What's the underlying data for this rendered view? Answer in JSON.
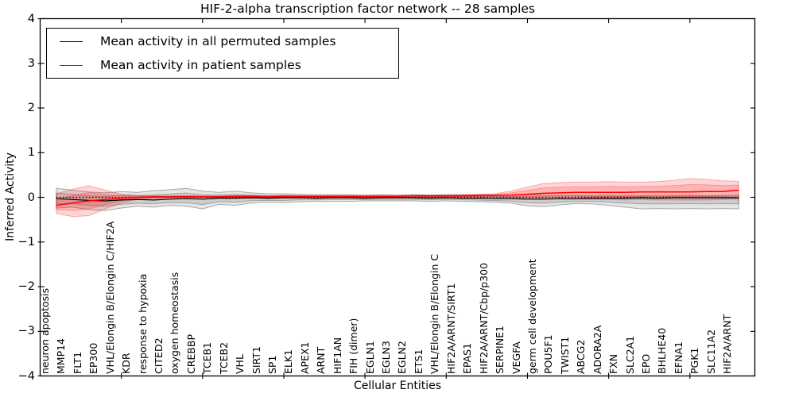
{
  "title": "HIF-2-alpha transcription factor network -- 28 samples",
  "legend": {
    "items": [
      {
        "label": "Mean activity in all permuted samples",
        "color": "#000000"
      },
      {
        "label": "Mean activity in patient samples",
        "color": "#ff0000"
      }
    ],
    "position": "upper left"
  },
  "chart_data": {
    "type": "line",
    "title": "HIF-2-alpha transcription factor network -- 28 samples",
    "xlabel": "Cellular Entities",
    "ylabel": "Inferred Activity",
    "ylim": [
      -4,
      4
    ],
    "y_ticks": [
      -4,
      -3,
      -2,
      -1,
      0,
      1,
      2,
      3,
      4
    ],
    "y_tick_labels": [
      "−4",
      "−3",
      "−2",
      "−1",
      "0",
      "1",
      "2",
      "3",
      "4"
    ],
    "x_major_ticks": [
      5,
      10,
      15,
      20,
      25,
      30,
      35,
      40
    ],
    "grid": false,
    "legend_position": "upper left",
    "zero_line": {
      "y": 0,
      "style": "dotted",
      "color": "#000000"
    },
    "band_inner_ratio": 0.55,
    "categories": [
      "neuron apoptosis",
      "MMP14",
      "FLT1",
      "EP300",
      "VHL/Elongin B/Elongin C/HIF2A",
      "KDR",
      "response to hypoxia",
      "CITED2",
      "oxygen homeostasis",
      "CREBBP",
      "TCEB1",
      "TCEB2",
      "VHL",
      "SIRT1",
      "SP1",
      "ELK1",
      "APEX1",
      "ARNT",
      "HIF1AN",
      "FIH (dimer)",
      "EGLN1",
      "EGLN3",
      "EGLN2",
      "ETS1",
      "VHL/Elongin B/Elongin C",
      "HIF2A/ARNT/SIRT1",
      "EPAS1",
      "HIF2A/ARNT/Cbp/p300",
      "SERPINE1",
      "VEGFA",
      "germ cell development",
      "POU5F1",
      "TWIST1",
      "ABCG2",
      "ADORA2A",
      "FXN",
      "SLC2A1",
      "EPO",
      "BHLHE40",
      "EFNA1",
      "PGK1",
      "SLC11A2",
      "HIF2A/ARNT"
    ],
    "series": [
      {
        "name": "Mean activity in all permuted samples",
        "color": "#000000",
        "band_color": "#000000",
        "band_fill_opacity": 0.1,
        "values": [
          -0.03,
          -0.05,
          -0.07,
          -0.08,
          -0.06,
          -0.05,
          -0.06,
          -0.04,
          -0.03,
          -0.04,
          -0.02,
          -0.02,
          -0.01,
          -0.02,
          -0.01,
          -0.01,
          -0.02,
          -0.01,
          -0.01,
          -0.02,
          -0.01,
          -0.01,
          -0.01,
          -0.02,
          -0.01,
          -0.02,
          -0.02,
          -0.03,
          -0.03,
          -0.04,
          -0.04,
          -0.03,
          -0.03,
          -0.02,
          -0.02,
          -0.02,
          -0.01,
          -0.02,
          -0.01,
          -0.01,
          -0.01,
          -0.01,
          -0.01
        ],
        "band_upper": [
          0.2,
          0.16,
          0.12,
          0.1,
          0.13,
          0.11,
          0.15,
          0.17,
          0.2,
          0.14,
          0.11,
          0.14,
          0.1,
          0.08,
          0.08,
          0.07,
          0.06,
          0.06,
          0.06,
          0.05,
          0.06,
          0.05,
          0.06,
          0.05,
          0.06,
          0.06,
          0.05,
          0.05,
          0.05,
          0.06,
          0.05,
          0.04,
          0.05,
          0.04,
          0.05,
          0.04,
          0.04,
          0.04,
          0.04,
          0.05,
          0.04,
          0.04,
          0.05
        ],
        "band_lower": [
          -0.24,
          -0.22,
          -0.27,
          -0.3,
          -0.24,
          -0.2,
          -0.22,
          -0.18,
          -0.2,
          -0.26,
          -0.16,
          -0.18,
          -0.13,
          -0.11,
          -0.12,
          -0.1,
          -0.09,
          -0.09,
          -0.09,
          -0.08,
          -0.08,
          -0.08,
          -0.08,
          -0.09,
          -0.08,
          -0.09,
          -0.1,
          -0.11,
          -0.13,
          -0.19,
          -0.21,
          -0.17,
          -0.14,
          -0.15,
          -0.18,
          -0.22,
          -0.26,
          -0.25,
          -0.26,
          -0.25,
          -0.26,
          -0.25,
          -0.26
        ]
      },
      {
        "name": "Mean activity in patient samples",
        "color": "#ff0000",
        "band_color": "#ff0000",
        "band_fill_opacity": 0.16,
        "values": [
          -0.18,
          -0.13,
          -0.08,
          -0.05,
          -0.02,
          0.0,
          0.01,
          0.01,
          0.02,
          0.01,
          0.01,
          0.02,
          0.02,
          0.01,
          0.02,
          0.02,
          0.02,
          0.02,
          0.02,
          0.02,
          0.02,
          0.02,
          0.03,
          0.03,
          0.03,
          0.03,
          0.04,
          0.04,
          0.05,
          0.07,
          0.09,
          0.1,
          0.11,
          0.11,
          0.11,
          0.11,
          0.12,
          0.12,
          0.12,
          0.12,
          0.13,
          0.13,
          0.16
        ],
        "band_upper": [
          0.08,
          0.18,
          0.26,
          0.16,
          0.07,
          0.04,
          0.03,
          0.03,
          0.03,
          0.03,
          0.03,
          0.04,
          0.04,
          0.03,
          0.04,
          0.04,
          0.04,
          0.04,
          0.04,
          0.04,
          0.04,
          0.04,
          0.05,
          0.05,
          0.05,
          0.06,
          0.07,
          0.08,
          0.14,
          0.23,
          0.31,
          0.33,
          0.34,
          0.34,
          0.35,
          0.34,
          0.34,
          0.35,
          0.38,
          0.42,
          0.4,
          0.37,
          0.36
        ],
        "band_lower": [
          -0.36,
          -0.43,
          -0.41,
          -0.26,
          -0.12,
          -0.05,
          -0.02,
          -0.01,
          -0.01,
          -0.01,
          -0.01,
          -0.01,
          0.0,
          0.0,
          0.0,
          0.0,
          0.0,
          0.0,
          0.0,
          0.0,
          0.0,
          0.0,
          0.0,
          0.0,
          0.01,
          0.01,
          0.01,
          0.0,
          -0.01,
          -0.02,
          -0.03,
          -0.04,
          -0.04,
          -0.05,
          -0.05,
          -0.06,
          -0.05,
          -0.06,
          -0.06,
          -0.06,
          -0.06,
          -0.05,
          -0.04
        ]
      }
    ]
  }
}
